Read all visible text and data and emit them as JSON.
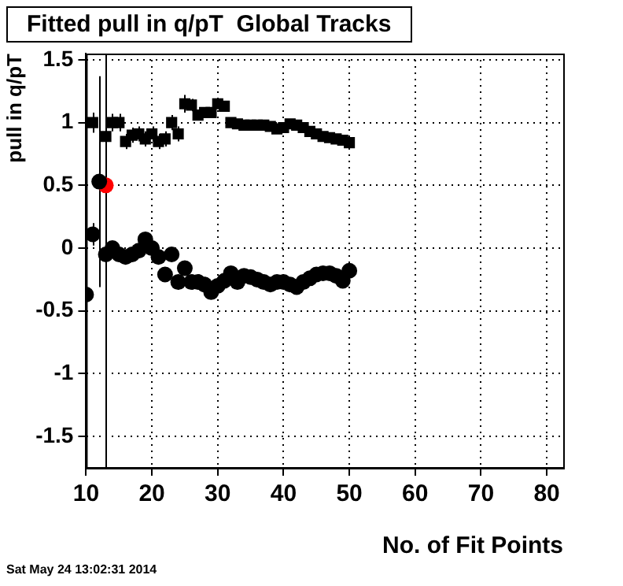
{
  "chart_data": {
    "type": "scatter",
    "title": "Fitted pull in q/pT  Global Tracks",
    "xlabel": "No. of Fit Points",
    "ylabel": "pull in q/pT",
    "annotations": [
      "Sat May 24 13:02:31 2014"
    ],
    "xlim": [
      10,
      82.5
    ],
    "xticks": [
      10,
      20,
      30,
      40,
      50,
      60,
      70,
      80
    ],
    "ylim": [
      -1.75,
      1.55
    ],
    "yticks": [
      -1.5,
      -1,
      -0.5,
      0,
      0.5,
      1,
      1.5
    ],
    "grid": true,
    "series": [
      {
        "marker": "square",
        "color": "#000000",
        "x": [
          11,
          13,
          14,
          15,
          16,
          17,
          18,
          19,
          20,
          21,
          22,
          23,
          24,
          25,
          26,
          27,
          28,
          29,
          30,
          31,
          32,
          33,
          34,
          35,
          36,
          37,
          38,
          39,
          40,
          41,
          42,
          43,
          44,
          45,
          46,
          47,
          48,
          49,
          50
        ],
        "values": [
          1.0,
          0.89,
          1.0,
          1.0,
          0.85,
          0.9,
          0.91,
          0.87,
          0.91,
          0.85,
          0.87,
          1.0,
          0.91,
          1.15,
          1.14,
          1.06,
          1.08,
          1.08,
          1.15,
          1.13,
          1.0,
          0.99,
          0.98,
          0.98,
          0.98,
          0.98,
          0.97,
          0.95,
          0.96,
          0.99,
          0.98,
          0.96,
          0.93,
          0.91,
          0.89,
          0.88,
          0.87,
          0.86,
          0.84
        ],
        "errors": [
          0.08,
          null,
          0.07,
          0.07,
          0.06,
          0.06,
          0.06,
          0.06,
          0.06,
          0.06,
          0.06,
          0.06,
          0.06,
          0.07,
          0.05,
          null,
          null,
          null,
          null,
          null,
          null,
          null,
          null,
          null,
          null,
          null,
          null,
          null,
          null,
          null,
          null,
          null,
          null,
          null,
          null,
          null,
          null,
          null,
          null
        ]
      },
      {
        "marker": "circle",
        "color": "#000000",
        "x": [
          10,
          11,
          12,
          13,
          14,
          15,
          16,
          17,
          18,
          19,
          20,
          21,
          22,
          23,
          24,
          25,
          26,
          27,
          28,
          29,
          30,
          31,
          32,
          33,
          34,
          35,
          36,
          37,
          38,
          39,
          40,
          41,
          42,
          43,
          44,
          45,
          46,
          47,
          48,
          49,
          50
        ],
        "values": [
          -0.37,
          0.11,
          0.53,
          -0.05,
          0.0,
          -0.05,
          -0.07,
          -0.05,
          -0.02,
          0.07,
          0.0,
          -0.07,
          -0.21,
          -0.05,
          -0.27,
          -0.16,
          -0.27,
          -0.27,
          -0.29,
          -0.35,
          -0.3,
          -0.26,
          -0.2,
          -0.27,
          -0.22,
          -0.23,
          -0.25,
          -0.27,
          -0.29,
          -0.27,
          -0.27,
          -0.29,
          -0.31,
          -0.27,
          -0.24,
          -0.21,
          -0.2,
          -0.2,
          -0.22,
          -0.26,
          -0.18
        ],
        "errors": [
          0.05,
          0.09,
          [
            -0.31,
            1.37
          ],
          null,
          null,
          null,
          null,
          null,
          null,
          0.06,
          null,
          null,
          0.06,
          null,
          0.06,
          0.05,
          0.06,
          0.06,
          0.06,
          null,
          null,
          null,
          null,
          null,
          null,
          null,
          null,
          null,
          null,
          null,
          null,
          null,
          null,
          null,
          null,
          null,
          null,
          null,
          null,
          null,
          null
        ]
      },
      {
        "marker": "circle",
        "color": "#ff0000",
        "x": [
          13
        ],
        "values": [
          0.5
        ],
        "errors": [
          [
            -1.75,
            1.55
          ]
        ]
      }
    ]
  }
}
